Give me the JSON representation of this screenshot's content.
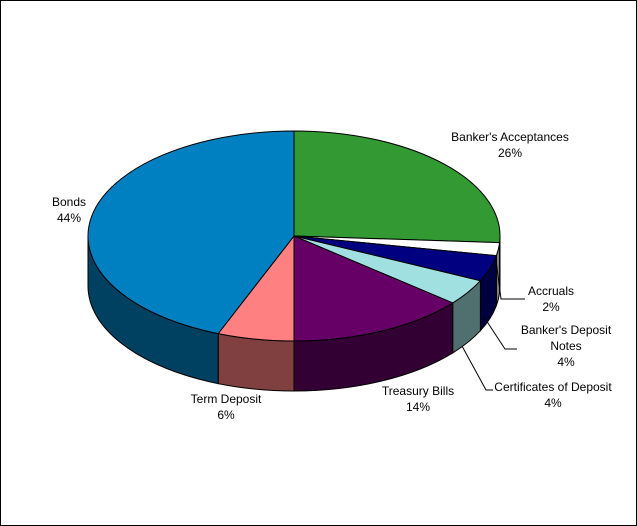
{
  "chart_data": {
    "type": "pie3d",
    "categories": [
      "Banker's Acceptances",
      "Accruals",
      "Banker's Deposit Notes",
      "Certificates of Deposit",
      "Treasury Bills",
      "Term Deposit",
      "Bonds"
    ],
    "values": [
      26,
      2,
      4,
      4,
      14,
      6,
      44
    ],
    "value_labels": [
      "26%",
      "2%",
      "4%",
      "4%",
      "14%",
      "6%",
      "44%"
    ],
    "colors": [
      "#339933",
      "#ffffff",
      "#000080",
      "#a0e0e0",
      "#660066",
      "#ff8080",
      "#0080c0"
    ]
  }
}
